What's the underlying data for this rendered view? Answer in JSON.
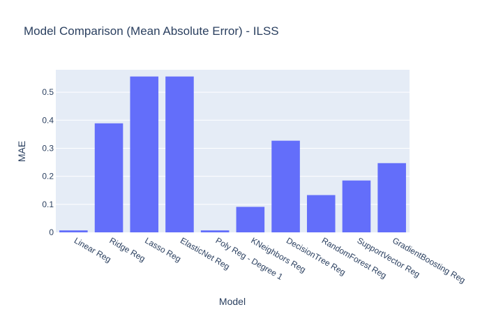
{
  "chart_data": {
    "type": "bar",
    "title": "Model Comparison (Mean Absolute Error) - ILSS",
    "xlabel": "Model",
    "ylabel": "MAE",
    "categories": [
      "Linear Reg",
      "Ridge Reg",
      "Lasso Reg",
      "ElasticNet Reg",
      "Poly Reg - Degree 1",
      "KNeighbors Reg",
      "DecisionTree Reg",
      "RandomForest Reg",
      "SupportVector Reg",
      "GradientBoosting Reg"
    ],
    "values": [
      0.007,
      0.389,
      0.556,
      0.556,
      0.007,
      0.091,
      0.327,
      0.133,
      0.185,
      0.247
    ],
    "ylim": [
      0,
      0.58
    ],
    "yticks": [
      0,
      0.1,
      0.2,
      0.3,
      0.4,
      0.5
    ],
    "ytick_labels": [
      "0",
      "0.1",
      "0.2",
      "0.3",
      "0.4",
      "0.5"
    ],
    "grid": true,
    "colors": {
      "bar": "#636efa",
      "plot_bg": "#e5ecf6",
      "grid": "#ffffff",
      "text": "#2a3f5f"
    }
  }
}
